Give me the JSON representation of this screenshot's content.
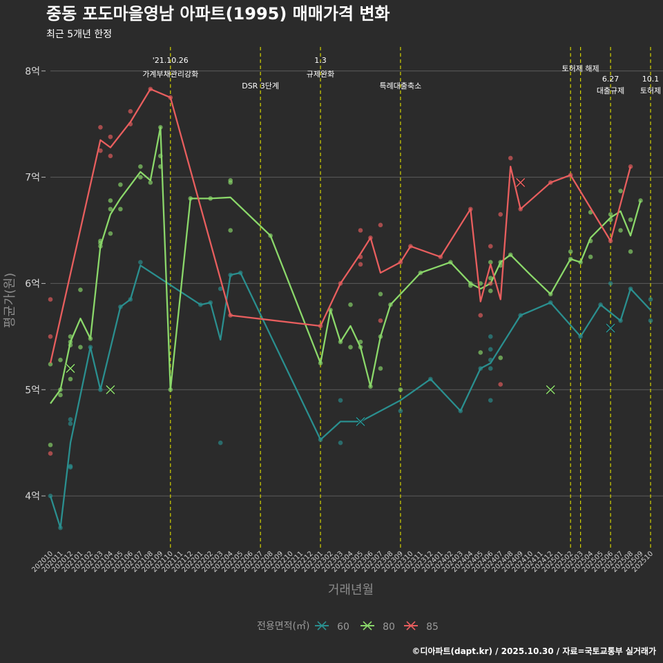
{
  "chart_data": {
    "type": "line",
    "title": "중동 포도마을영남 아파트(1995) 매매가격 변화",
    "subtitle": "최근 5개년 한정",
    "xlabel": "거래년월",
    "ylabel": "평균가(원)",
    "ylim": [
      3.5,
      8.2
    ],
    "y_ticks": [
      {
        "value": 4,
        "label": "4억"
      },
      {
        "value": 5,
        "label": "5억"
      },
      {
        "value": 6,
        "label": "6억"
      },
      {
        "value": 7,
        "label": "7억"
      },
      {
        "value": 8,
        "label": "8억"
      }
    ],
    "x_tick_labels": [
      "202010",
      "202011",
      "202012",
      "202101",
      "202102",
      "202103",
      "202104",
      "202105",
      "202106",
      "202107",
      "202108",
      "202109",
      "202110",
      "202111",
      "202112",
      "202201",
      "202202",
      "202203",
      "202204",
      "202205",
      "202206",
      "202207",
      "202208",
      "202209",
      "202210",
      "202211",
      "202212",
      "202301",
      "202302",
      "202303",
      "202304",
      "202305",
      "202306",
      "202307",
      "202308",
      "202309",
      "202310",
      "202311",
      "202312",
      "202401",
      "202402",
      "202403",
      "202404",
      "202405",
      "202406",
      "202407",
      "202408",
      "202409",
      "202410",
      "202411",
      "202412",
      "202501",
      "202502",
      "202503",
      "202504",
      "202505",
      "202506",
      "202507",
      "202508",
      "202509",
      "202510"
    ],
    "events": [
      {
        "x": 12.0,
        "lines": [
          "'21.10.26",
          "가계부채관리강화"
        ],
        "level": 0
      },
      {
        "x": 21.0,
        "lines": [
          "DSR 3단계"
        ],
        "level": 2
      },
      {
        "x": 27.0,
        "lines": [
          "1.3",
          "규제완화"
        ],
        "level": 0
      },
      {
        "x": 35.0,
        "lines": [
          "특례대출축소"
        ],
        "level": 2
      },
      {
        "x": 52.0,
        "lines": [],
        "level": 1
      },
      {
        "x": 53.0,
        "lines": [
          "토허제 해제"
        ],
        "level": 1
      },
      {
        "x": 56.0,
        "lines": [
          "6.27",
          "대출규제"
        ],
        "level": 3
      },
      {
        "x": 60.0,
        "lines": [
          "10.1",
          "토허제"
        ],
        "level": 3
      }
    ],
    "series": [
      {
        "name": "60",
        "color": "#2a8f8f",
        "line": [
          [
            0,
            4.0
          ],
          [
            1,
            3.7
          ],
          [
            2,
            4.5
          ],
          [
            4,
            5.4
          ],
          [
            5,
            5.0
          ],
          [
            7,
            5.78
          ],
          [
            8,
            5.85
          ],
          [
            9,
            6.17
          ],
          [
            15,
            5.8
          ],
          [
            16,
            5.82
          ],
          [
            17,
            5.47
          ],
          [
            18,
            6.08
          ],
          [
            19,
            6.1
          ],
          [
            27,
            4.53
          ],
          [
            29,
            4.7
          ],
          [
            31,
            4.7
          ],
          [
            35,
            4.9
          ],
          [
            38,
            5.1
          ],
          [
            41,
            4.8
          ],
          [
            43,
            5.2
          ],
          [
            44,
            5.25
          ],
          [
            47,
            5.7
          ],
          [
            50,
            5.82
          ],
          [
            53,
            5.5
          ],
          [
            55,
            5.8
          ],
          [
            57,
            5.65
          ],
          [
            58,
            5.95
          ],
          [
            60,
            5.75
          ]
        ],
        "points": [
          [
            0,
            4.0
          ],
          [
            1,
            3.7
          ],
          [
            2,
            4.72
          ],
          [
            2,
            4.68
          ],
          [
            2,
            4.28
          ],
          [
            2,
            4.27
          ],
          [
            4,
            5.4
          ],
          [
            5,
            5.0
          ],
          [
            7,
            5.78
          ],
          [
            8,
            5.85
          ],
          [
            9,
            6.2
          ],
          [
            15,
            5.8
          ],
          [
            16,
            5.82
          ],
          [
            17,
            4.5
          ],
          [
            17,
            5.95
          ],
          [
            18,
            6.08
          ],
          [
            19,
            6.1
          ],
          [
            27,
            4.53
          ],
          [
            29,
            4.9
          ],
          [
            29,
            4.5
          ],
          [
            31,
            4.7
          ],
          [
            35,
            4.8
          ],
          [
            38,
            5.1
          ],
          [
            41,
            4.8
          ],
          [
            43,
            5.2
          ],
          [
            44,
            4.9
          ],
          [
            44,
            5.2
          ],
          [
            44,
            5.28
          ],
          [
            44,
            5.38
          ],
          [
            44,
            5.5
          ],
          [
            47,
            5.7
          ],
          [
            50,
            5.82
          ],
          [
            53,
            5.5
          ],
          [
            55,
            5.8
          ],
          [
            56,
            6.0
          ],
          [
            57,
            5.65
          ],
          [
            58,
            5.95
          ],
          [
            60,
            5.85
          ],
          [
            60,
            5.65
          ]
        ],
        "crosses": [
          [
            31,
            4.7
          ],
          [
            56,
            5.58
          ]
        ]
      },
      {
        "name": "80",
        "color": "#8bd86a",
        "line": [
          [
            0,
            4.87
          ],
          [
            1,
            5.0
          ],
          [
            2,
            5.45
          ],
          [
            3,
            5.67
          ],
          [
            4,
            5.48
          ],
          [
            5,
            6.35
          ],
          [
            6,
            6.65
          ],
          [
            7,
            6.8
          ],
          [
            9,
            7.05
          ],
          [
            10,
            6.97
          ],
          [
            11,
            7.47
          ],
          [
            12,
            5.0
          ],
          [
            14,
            6.8
          ],
          [
            16,
            6.8
          ],
          [
            18,
            6.81
          ],
          [
            22,
            6.45
          ],
          [
            27,
            5.25
          ],
          [
            28,
            5.75
          ],
          [
            29,
            5.45
          ],
          [
            30,
            5.6
          ],
          [
            31,
            5.4
          ],
          [
            32,
            5.03
          ],
          [
            33,
            5.5
          ],
          [
            34,
            5.8
          ],
          [
            37,
            6.1
          ],
          [
            40,
            6.2
          ],
          [
            42,
            6.0
          ],
          [
            43,
            5.95
          ],
          [
            44,
            6.0
          ],
          [
            45,
            6.2
          ],
          [
            46,
            6.27
          ],
          [
            48,
            6.08
          ],
          [
            50,
            5.9
          ],
          [
            52,
            6.23
          ],
          [
            53,
            6.2
          ],
          [
            54,
            6.43
          ],
          [
            56,
            6.62
          ],
          [
            57,
            6.68
          ],
          [
            58,
            6.45
          ],
          [
            59,
            6.78
          ]
        ],
        "points": [
          [
            0,
            4.48
          ],
          [
            0,
            5.24
          ],
          [
            1,
            4.95
          ],
          [
            1,
            5.0
          ],
          [
            1,
            5.28
          ],
          [
            2,
            5.1
          ],
          [
            2,
            5.42
          ],
          [
            2,
            5.45
          ],
          [
            2,
            5.5
          ],
          [
            3,
            5.4
          ],
          [
            3,
            5.94
          ],
          [
            4,
            5.48
          ],
          [
            5,
            6.35
          ],
          [
            5,
            6.38
          ],
          [
            5,
            6.4
          ],
          [
            6,
            6.47
          ],
          [
            6,
            6.7
          ],
          [
            6,
            6.78
          ],
          [
            7,
            6.7
          ],
          [
            7,
            6.93
          ],
          [
            9,
            7.0
          ],
          [
            9,
            7.1
          ],
          [
            10,
            6.95
          ],
          [
            11,
            7.47
          ],
          [
            11,
            7.2
          ],
          [
            11,
            7.1
          ],
          [
            12,
            5.0
          ],
          [
            14,
            6.8
          ],
          [
            16,
            6.8
          ],
          [
            18,
            6.5
          ],
          [
            18,
            6.95
          ],
          [
            18,
            6.97
          ],
          [
            22,
            6.45
          ],
          [
            27,
            5.25
          ],
          [
            28,
            5.75
          ],
          [
            29,
            5.45
          ],
          [
            30,
            5.8
          ],
          [
            30,
            5.4
          ],
          [
            31,
            5.4
          ],
          [
            31,
            5.45
          ],
          [
            32,
            5.03
          ],
          [
            33,
            5.2
          ],
          [
            33,
            5.5
          ],
          [
            33,
            5.9
          ],
          [
            34,
            5.8
          ],
          [
            35,
            5.0
          ],
          [
            37,
            6.1
          ],
          [
            40,
            6.2
          ],
          [
            42,
            5.98
          ],
          [
            42,
            6.0
          ],
          [
            43,
            6.0
          ],
          [
            43,
            5.35
          ],
          [
            44,
            5.93
          ],
          [
            44,
            6.05
          ],
          [
            44,
            6.2
          ],
          [
            45,
            6.2
          ],
          [
            45,
            6.17
          ],
          [
            45,
            5.3
          ],
          [
            46,
            6.27
          ],
          [
            50,
            5.9
          ],
          [
            52,
            6.3
          ],
          [
            52,
            6.23
          ],
          [
            53,
            6.2
          ],
          [
            54,
            6.4
          ],
          [
            54,
            6.67
          ],
          [
            54,
            6.25
          ],
          [
            56,
            6.65
          ],
          [
            56,
            6.6
          ],
          [
            57,
            6.87
          ],
          [
            57,
            6.5
          ],
          [
            58,
            6.3
          ],
          [
            58,
            6.6
          ],
          [
            59,
            6.78
          ]
        ],
        "crosses": [
          [
            2,
            5.2
          ],
          [
            6,
            5.0
          ],
          [
            50,
            5.0
          ]
        ]
      },
      {
        "name": "85",
        "color": "#e85e5e",
        "line": [
          [
            0,
            5.25
          ],
          [
            5,
            7.35
          ],
          [
            6,
            7.28
          ],
          [
            8,
            7.52
          ],
          [
            10,
            7.83
          ],
          [
            12,
            7.75
          ],
          [
            18,
            5.7
          ],
          [
            27,
            5.6
          ],
          [
            29,
            6.0
          ],
          [
            31,
            6.28
          ],
          [
            32,
            6.43
          ],
          [
            33,
            6.1
          ],
          [
            35,
            6.2
          ],
          [
            36,
            6.35
          ],
          [
            39,
            6.25
          ],
          [
            42,
            6.7
          ],
          [
            43,
            5.83
          ],
          [
            44,
            6.18
          ],
          [
            45,
            5.85
          ],
          [
            46,
            7.1
          ],
          [
            47,
            6.7
          ],
          [
            50,
            6.95
          ],
          [
            52,
            7.02
          ],
          [
            56,
            6.4
          ],
          [
            58,
            7.1
          ]
        ],
        "points": [
          [
            0,
            5.85
          ],
          [
            0,
            5.5
          ],
          [
            0,
            4.4
          ],
          [
            5,
            7.47
          ],
          [
            5,
            7.25
          ],
          [
            6,
            7.38
          ],
          [
            6,
            7.2
          ],
          [
            8,
            7.5
          ],
          [
            8,
            7.62
          ],
          [
            10,
            7.83
          ],
          [
            12,
            7.75
          ],
          [
            18,
            5.7
          ],
          [
            27,
            5.6
          ],
          [
            29,
            6.0
          ],
          [
            31,
            6.5
          ],
          [
            31,
            6.25
          ],
          [
            31,
            6.18
          ],
          [
            32,
            6.43
          ],
          [
            33,
            6.55
          ],
          [
            33,
            5.65
          ],
          [
            35,
            6.2
          ],
          [
            36,
            6.35
          ],
          [
            39,
            6.25
          ],
          [
            42,
            6.7
          ],
          [
            43,
            5.7
          ],
          [
            44,
            6.0
          ],
          [
            44,
            6.35
          ],
          [
            45,
            6.65
          ],
          [
            45,
            5.05
          ],
          [
            46,
            7.18
          ],
          [
            47,
            6.7
          ],
          [
            50,
            6.95
          ],
          [
            52,
            7.02
          ],
          [
            56,
            6.4
          ],
          [
            58,
            7.1
          ]
        ],
        "crosses": [
          [
            47,
            6.95
          ]
        ]
      }
    ],
    "legend": {
      "title": "전용면적(㎡)",
      "position": "bottom"
    },
    "caption": "©디아파트(dapt.kr) / 2025.10.30 / 자료=국토교통부 실거래가"
  }
}
